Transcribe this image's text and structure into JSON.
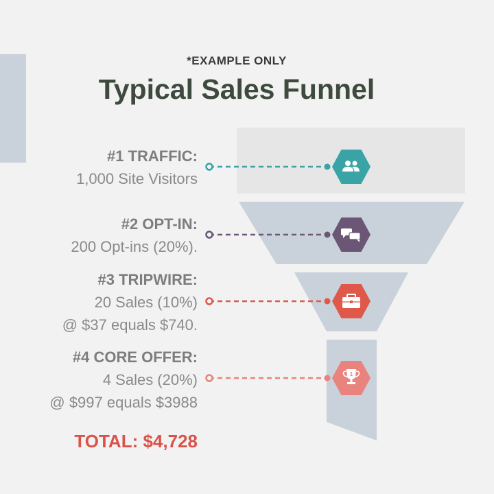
{
  "header": {
    "subtitle": "*EXAMPLE ONLY",
    "title": "Typical Sales Funnel"
  },
  "stages": [
    {
      "heading": "#1 TRAFFIC:",
      "lines": [
        "1,000 Site Visitors"
      ],
      "color": "#3aa3a5",
      "icon": "users-icon"
    },
    {
      "heading": "#2 OPT-IN:",
      "lines": [
        "200 Opt-ins (20%)."
      ],
      "color": "#6b5676",
      "icon": "chat-bubbles-icon"
    },
    {
      "heading": "#3 TRIPWIRE:",
      "lines": [
        "20 Sales (10%)",
        "@ $37 equals $740."
      ],
      "color": "#e0584a",
      "icon": "briefcase-icon"
    },
    {
      "heading": "#4 CORE OFFER:",
      "lines": [
        "4 Sales (20%)",
        "@ $997 equals $3988"
      ],
      "color": "#e8837d",
      "icon": "trophy-icon"
    }
  ],
  "total": "TOTAL: $4,728",
  "colors": {
    "funnel_fill": "#c9d1da",
    "traffic_box": "#e6e6e6",
    "title": "#3f4a3f",
    "total": "#d9534a"
  }
}
